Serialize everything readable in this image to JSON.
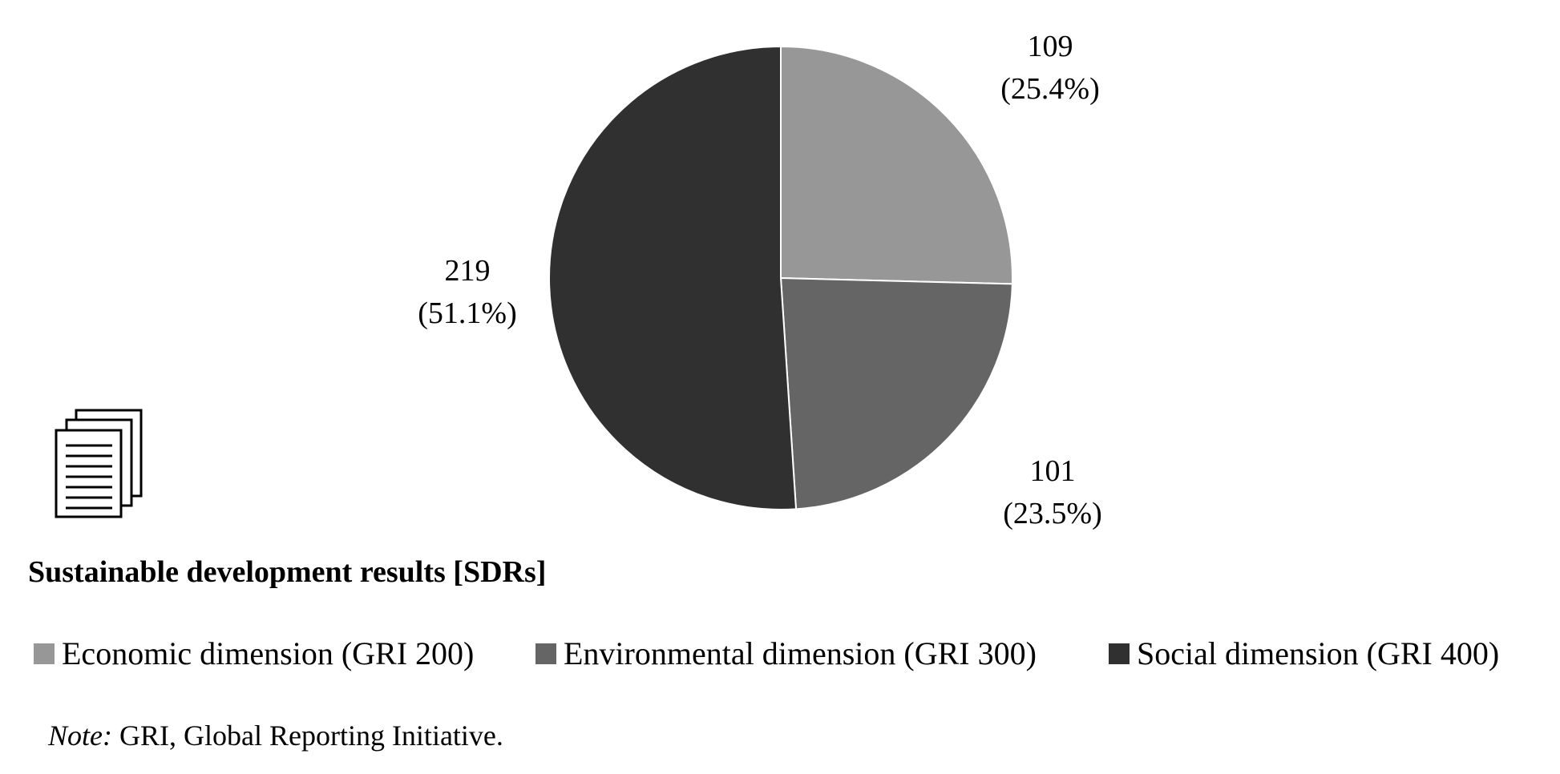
{
  "chart_data": {
    "type": "pie",
    "title": "Sustainable development results [SDRs]",
    "slices": [
      {
        "name": "Economic dimension (GRI 200)",
        "value": 109,
        "percent": "25.4%",
        "color": "#979797"
      },
      {
        "name": "Environmental dimension (GRI 300)",
        "value": 101,
        "percent": "23.5%",
        "color": "#656565"
      },
      {
        "name": "Social dimension (GRI 400)",
        "value": 219,
        "percent": "51.1%",
        "color": "#303030"
      }
    ],
    "legend_placement": "bottom",
    "note_label": "Note:",
    "note_text": " GRI, Global Reporting Initiative."
  },
  "icons": {
    "title_icon": "document-stack-icon"
  }
}
